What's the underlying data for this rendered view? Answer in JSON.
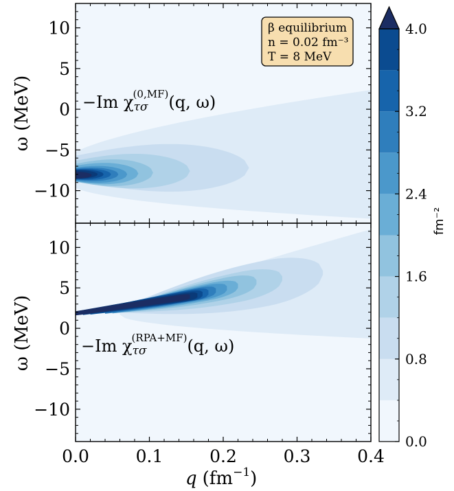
{
  "colors": {
    "levels": [
      "#f1f7fd",
      "#deebf7",
      "#c9ddf0",
      "#b0d2e8",
      "#91c3df",
      "#6aaed6",
      "#4b98cb",
      "#2f7ebc",
      "#1764ab",
      "#0b4b90",
      "#0a3a78",
      "#1b2d63"
    ],
    "legend_box": "#f7deaf",
    "axis": "#000000"
  },
  "chart_data": [
    {
      "type": "heatmap",
      "panel": "top",
      "annotation": "−Im χ_{τσ}^{(0,MF)}(q, ω)",
      "annotation_main": "−Im χ",
      "annotation_sup": "(0,MF)",
      "annotation_sub": "τσ",
      "annotation_tail": "(q, ω)",
      "xlabel": "q (fm⁻¹)",
      "ylabel": "ω (MeV)",
      "xlim": [
        0.0,
        0.4
      ],
      "ylim": [
        -14,
        13
      ],
      "yticks": [
        "10",
        "5",
        "0",
        "−5",
        "−10"
      ],
      "ytick_values": [
        10,
        5,
        0,
        -5,
        -10
      ],
      "description_of_contours": "strongest response near q=0, ω≈−8 MeV, broadening toward larger q",
      "peak": {
        "q": 0.02,
        "omega": -8.0,
        "value_above": 4.0
      }
    },
    {
      "type": "heatmap",
      "panel": "bottom",
      "annotation": "−Im χ_{τσ}^{(RPA+MF)}(q, ω)",
      "annotation_main": "−Im χ",
      "annotation_sup": "(RPA+MF)",
      "annotation_sub": "τσ",
      "annotation_tail": "(q, ω)",
      "xlabel": "q (fm⁻¹)",
      "ylabel": "ω (MeV)",
      "xlim": [
        0.0,
        0.4
      ],
      "ylim": [
        -14,
        13
      ],
      "xticks": [
        "0.0",
        "0.1",
        "0.2",
        "0.3",
        "0.4"
      ],
      "xtick_values": [
        0.0,
        0.1,
        0.2,
        0.3,
        0.4
      ],
      "yticks": [
        "10",
        "5",
        "0",
        "−5",
        "−10"
      ],
      "ytick_values": [
        10,
        5,
        0,
        -5,
        -10
      ],
      "peak": {
        "q": 0.17,
        "omega": 4.0,
        "value_above": 4.0
      }
    }
  ],
  "legend_box": {
    "line1": "β equilibrium",
    "line2": "n = 0.02 fm⁻³",
    "line3": "T = 8 MeV"
  },
  "colorbar": {
    "label": "fm⁻²",
    "ticks": [
      "0.0",
      "0.8",
      "1.6",
      "2.4",
      "3.2",
      "4.0"
    ],
    "tick_values": [
      0.0,
      0.8,
      1.6,
      2.4,
      3.2,
      4.0
    ],
    "levels": [
      0.0,
      0.4,
      0.8,
      1.2,
      1.6,
      2.0,
      2.4,
      2.8,
      3.2,
      3.6,
      4.0
    ],
    "extend": "max"
  },
  "axes": {
    "xlabel_q": "q",
    "xlabel_unit": "(fm",
    "xlabel_exp": "−1",
    "xlabel_close": ")",
    "ylabel_top": "ω (MeV)",
    "ylabel_bottom": "ω (MeV)"
  }
}
